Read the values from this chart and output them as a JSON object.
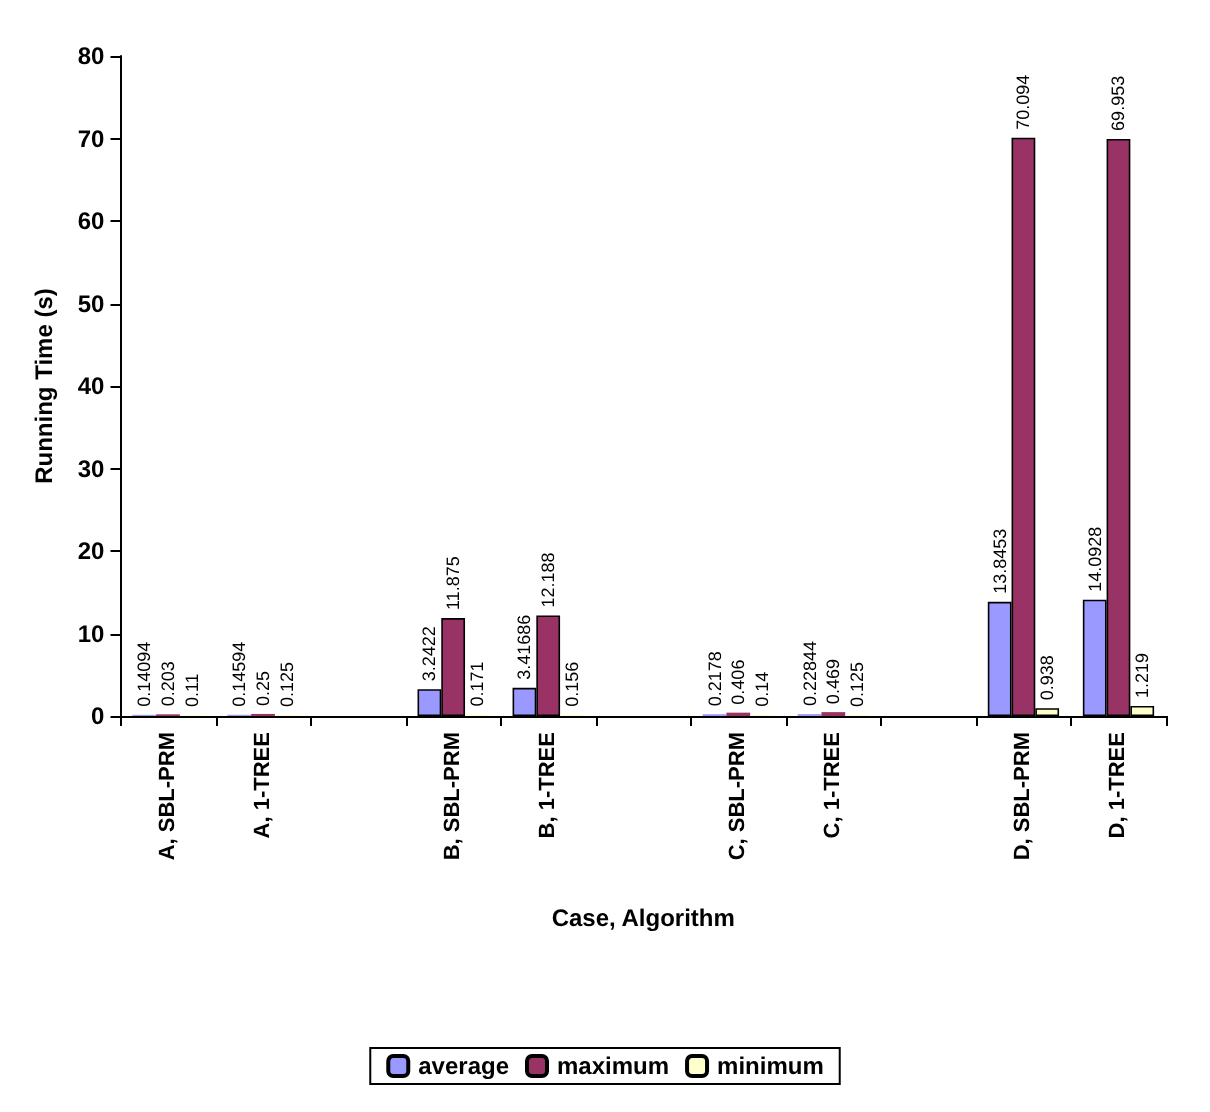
{
  "chart_data": {
    "type": "bar",
    "xlabel": "Case, Algorithm",
    "ylabel": "Running Time (s)",
    "categories": [
      "A, SBL-PRM",
      "A, 1-TREE",
      null,
      "B, SBL-PRM",
      "B, 1-TREE",
      null,
      "C, SBL-PRM",
      "C, 1-TREE",
      null,
      "D, SBL-PRM",
      "D, 1-TREE"
    ],
    "series": [
      {
        "name": "average",
        "color": "#9999ff",
        "values": [
          0.14094,
          0.14594,
          null,
          3.2422,
          3.41686,
          null,
          0.2178,
          0.22844,
          null,
          13.8453,
          14.0928
        ]
      },
      {
        "name": "maximum",
        "color": "#993366",
        "values": [
          0.203,
          0.25,
          null,
          11.875,
          12.188,
          null,
          0.406,
          0.469,
          null,
          70.094,
          69.953
        ]
      },
      {
        "name": "minimum",
        "color": "#ffffcc",
        "values": [
          0.11,
          0.125,
          null,
          0.171,
          0.156,
          null,
          0.14,
          0.125,
          null,
          0.938,
          1.219
        ]
      }
    ],
    "ylim": [
      0,
      80
    ],
    "yticks": [
      0,
      10,
      20,
      30,
      40,
      50,
      60,
      70,
      80
    ],
    "grid": false,
    "legend": "bottom",
    "data_labels": true
  }
}
